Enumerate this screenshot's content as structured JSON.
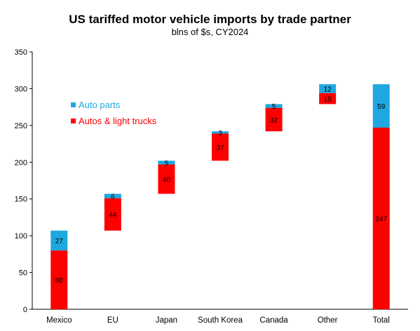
{
  "chart_data": {
    "type": "bar",
    "subtype": "waterfall-stacked",
    "title": "US tariffed motor vehicle imports by trade partner",
    "subtitle": "blns of $s, CY2024",
    "categories": [
      "Mexico",
      "EU",
      "Japan",
      "South Korea",
      "Canada",
      "Other",
      "Total"
    ],
    "series": [
      {
        "name": "Autos & light trucks",
        "color": "#ff0000",
        "values": [
          80,
          44,
          40,
          37,
          32,
          15,
          247
        ]
      },
      {
        "name": "Auto parts",
        "color": "#1fa8e0",
        "values": [
          27,
          6,
          5,
          3,
          5,
          12,
          59
        ]
      }
    ],
    "ylim": [
      0,
      350
    ],
    "yticks": [
      "0",
      "50",
      "100",
      "150",
      "200",
      "250",
      "300",
      "350"
    ],
    "legend": {
      "position": "upper-left",
      "order": [
        "Auto parts",
        "Autos & light trucks"
      ]
    },
    "grid": false
  }
}
